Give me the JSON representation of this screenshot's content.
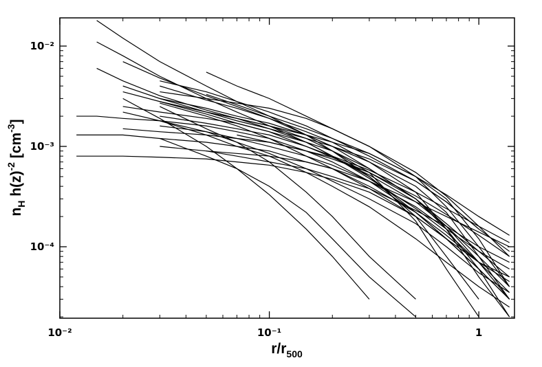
{
  "chart_data": {
    "type": "line",
    "x_label": [
      {
        "text": "r/r"
      },
      {
        "sub": "500"
      }
    ],
    "y_label": [
      {
        "text": "n"
      },
      {
        "sub": "H"
      },
      {
        "text": " h(z)"
      },
      {
        "sup": "-2"
      },
      {
        "text": " [cm"
      },
      {
        "sup": "-3"
      },
      {
        "text": "]"
      }
    ],
    "log_x": true,
    "log_y": true,
    "xlim": [
      0.01,
      1.48
    ],
    "ylim": [
      1.94e-05,
      0.0191
    ],
    "xticks": [
      {
        "value": 0.01,
        "label": "10⁻²"
      },
      {
        "value": 0.1,
        "label": "10⁻¹"
      },
      1
    ],
    "yticks": [
      {
        "value": 0.01,
        "label": "10⁻²"
      },
      {
        "value": 0.001,
        "label": "10⁻³"
      },
      {
        "value": 0.0001,
        "label": "10⁻⁴"
      }
    ],
    "xminorticks": [
      0.02,
      0.03,
      0.04,
      0.05,
      0.06,
      0.07,
      0.08,
      0.09,
      0.2,
      0.3,
      0.4,
      0.5,
      0.6,
      0.7,
      0.8,
      0.9
    ],
    "yminorticks": [
      2e-05,
      3e-05,
      4e-05,
      5e-05,
      6e-05,
      7e-05,
      8e-05,
      9e-05,
      0.0002,
      0.0003,
      0.0004,
      0.0005,
      0.0006,
      0.0007,
      0.0008,
      0.0009,
      0.002,
      0.003,
      0.004,
      0.005,
      0.006,
      0.007,
      0.008,
      0.009
    ],
    "x": [
      0.012,
      0.015,
      0.02,
      0.03,
      0.05,
      0.07,
      0.1,
      0.15,
      0.2,
      0.3,
      0.5,
      0.7,
      1.0,
      1.4
    ],
    "series": [
      {
        "color": "#000000",
        "values": [
          null,
          0.018,
          0.012,
          0.007,
          0.004,
          0.0028,
          0.002,
          0.0013,
          0.0009,
          0.0005,
          0.00022,
          0.00012,
          6e-05,
          3e-05
        ]
      },
      {
        "color": "#000000",
        "values": [
          0.002,
          0.002,
          0.0019,
          0.0018,
          0.0016,
          0.0014,
          0.0012,
          0.0009,
          0.0007,
          0.00045,
          0.00022,
          0.00012,
          6e-05,
          null
        ]
      },
      {
        "color": "#000000",
        "values": [
          0.0008,
          0.0008,
          0.0008,
          0.00078,
          0.00075,
          0.0007,
          0.00065,
          0.00055,
          0.00047,
          0.00035,
          0.0002,
          0.00012,
          6e-05,
          3e-05
        ]
      },
      {
        "color": "#000000",
        "values": [
          0.0013,
          0.0013,
          0.0013,
          0.0012,
          0.0011,
          0.001,
          0.0009,
          0.0007,
          0.0006,
          0.0004,
          0.00022,
          0.00013,
          7e-05,
          3.5e-05
        ]
      },
      {
        "color": "#000000",
        "values": [
          null,
          null,
          0.003,
          0.0019,
          0.001,
          0.0006,
          0.00033,
          0.00015,
          8e-05,
          3e-05,
          null,
          null,
          null,
          null
        ]
      },
      {
        "color": "#000000",
        "values": [
          null,
          null,
          null,
          0.0025,
          0.0015,
          0.0011,
          0.0007,
          0.00035,
          0.0002,
          8e-05,
          3e-05,
          null,
          null,
          null
        ]
      },
      {
        "color": "#000000",
        "values": [
          null,
          0.011,
          0.008,
          0.005,
          0.003,
          0.0022,
          0.0016,
          0.0011,
          0.0008,
          0.00048,
          0.00024,
          0.00014,
          7e-05,
          4.5e-05
        ]
      },
      {
        "color": "#000000",
        "values": [
          null,
          null,
          0.007,
          0.0048,
          0.0032,
          0.0025,
          0.0019,
          0.0013,
          0.001,
          0.0006,
          0.0003,
          0.00017,
          9e-05,
          5e-05
        ]
      },
      {
        "color": "#000000",
        "values": [
          null,
          null,
          null,
          0.004,
          0.0029,
          0.0024,
          0.0019,
          0.0014,
          0.0011,
          0.0007,
          0.00035,
          0.00015,
          5e-05,
          2e-05
        ]
      },
      {
        "color": "#000000",
        "values": [
          null,
          null,
          null,
          0.0035,
          0.003,
          0.0027,
          0.0024,
          0.0019,
          0.0015,
          0.001,
          0.0005,
          0.00025,
          0.0001,
          4e-05
        ]
      },
      {
        "color": "#000000",
        "values": [
          null,
          null,
          0.0015,
          0.0014,
          0.0013,
          0.0012,
          0.0011,
          0.0009,
          0.00078,
          0.00055,
          0.00032,
          0.00021,
          0.00013,
          8e-05
        ]
      },
      {
        "color": "#000000",
        "values": [
          null,
          null,
          null,
          0.0045,
          0.0035,
          0.0028,
          0.0022,
          0.0016,
          0.0012,
          0.0008,
          0.00045,
          0.00028,
          0.00015,
          9e-05
        ]
      },
      {
        "color": "#000000",
        "values": [
          null,
          null,
          null,
          0.003,
          0.0024,
          0.002,
          0.0017,
          0.0013,
          0.001,
          0.0007,
          0.0004,
          0.00022,
          8e-05,
          3e-05
        ]
      },
      {
        "color": "#000000",
        "values": [
          null,
          null,
          0.0025,
          0.0022,
          0.0019,
          0.0017,
          0.0014,
          0.0011,
          0.0009,
          0.0006,
          0.0003,
          0.00015,
          6e-05,
          2e-05
        ]
      },
      {
        "color": "#000000",
        "values": [
          null,
          null,
          null,
          null,
          0.0022,
          0.0019,
          0.0016,
          0.0012,
          0.0009,
          0.00055,
          0.00018,
          6e-05,
          2e-05,
          null
        ]
      },
      {
        "color": "#000000",
        "values": [
          null,
          null,
          null,
          0.0016,
          0.0014,
          0.0012,
          0.001,
          0.0008,
          0.00065,
          0.00045,
          0.00025,
          0.00015,
          9e-05,
          6e-05
        ]
      },
      {
        "color": "#000000",
        "values": [
          null,
          null,
          null,
          null,
          0.0009,
          0.0008,
          0.0007,
          0.0006,
          0.0005,
          0.00038,
          0.00023,
          0.00016,
          0.0001,
          7e-05
        ]
      },
      {
        "color": "#000000",
        "values": [
          null,
          null,
          null,
          0.0018,
          0.0013,
          0.001,
          0.0008,
          0.00055,
          0.0004,
          0.00025,
          0.00012,
          7e-05,
          4e-05,
          2.5e-05
        ]
      },
      {
        "color": "#000000",
        "values": [
          null,
          null,
          0.004,
          0.003,
          0.0022,
          0.0018,
          0.0015,
          0.0012,
          0.001,
          0.00075,
          0.00045,
          0.00028,
          0.00015,
          null
        ]
      },
      {
        "color": "#000000",
        "values": [
          null,
          null,
          null,
          null,
          0.0055,
          0.004,
          0.003,
          0.002,
          0.0015,
          0.001,
          0.00055,
          0.00032,
          0.00016,
          8e-05
        ]
      },
      {
        "color": "#000000",
        "values": [
          null,
          null,
          null,
          0.0028,
          0.0022,
          0.0019,
          0.0016,
          0.0013,
          0.0011,
          0.00085,
          0.0005,
          0.0003,
          0.00012,
          4e-05
        ]
      },
      {
        "color": "#000000",
        "values": [
          null,
          null,
          null,
          null,
          null,
          0.0013,
          0.0011,
          0.0009,
          0.00075,
          0.00055,
          0.0003,
          0.00016,
          7e-05,
          3e-05
        ]
      },
      {
        "color": "#000000",
        "values": [
          null,
          null,
          null,
          0.001,
          0.0009,
          0.00085,
          0.0008,
          0.0007,
          0.0006,
          0.00045,
          0.00028,
          0.0002,
          0.00014,
          0.0001
        ]
      },
      {
        "color": "#000000",
        "values": [
          null,
          0.006,
          0.0045,
          0.0032,
          0.0023,
          0.0019,
          0.0015,
          0.0011,
          0.0008,
          0.0005,
          0.0002,
          8e-05,
          3e-05,
          null
        ]
      },
      {
        "color": "#000000",
        "values": [
          null,
          null,
          null,
          0.0012,
          0.0008,
          0.0006,
          0.0004,
          0.00022,
          0.00012,
          5e-05,
          2e-05,
          null,
          null,
          null
        ]
      },
      {
        "color": "#000000",
        "values": [
          null,
          null,
          null,
          0.002,
          0.0017,
          0.0015,
          0.0013,
          0.001,
          0.0008,
          0.00058,
          0.00035,
          0.00024,
          0.00016,
          0.00011
        ]
      },
      {
        "color": "#000000",
        "values": [
          null,
          null,
          null,
          null,
          0.0033,
          0.0026,
          0.002,
          0.0015,
          0.0012,
          0.00085,
          0.0005,
          0.00033,
          0.0002,
          0.00013
        ]
      },
      {
        "color": "#000000",
        "values": [
          null,
          null,
          0.0022,
          0.0018,
          0.0014,
          0.0011,
          0.00085,
          0.0006,
          0.00045,
          0.0003,
          0.00017,
          0.0001,
          5.5e-05,
          3.5e-05
        ]
      },
      {
        "color": "#000000",
        "values": [
          null,
          null,
          null,
          0.0027,
          0.002,
          0.0016,
          0.0012,
          0.0008,
          0.0006,
          0.00038,
          0.0002,
          0.00012,
          7e-05,
          5e-05
        ]
      },
      {
        "color": "#000000",
        "values": [
          null,
          null,
          0.0035,
          0.0028,
          0.0021,
          0.0017,
          0.0014,
          0.001,
          0.00078,
          0.00052,
          0.00028,
          0.00016,
          8e-05,
          4e-05
        ]
      }
    ]
  }
}
